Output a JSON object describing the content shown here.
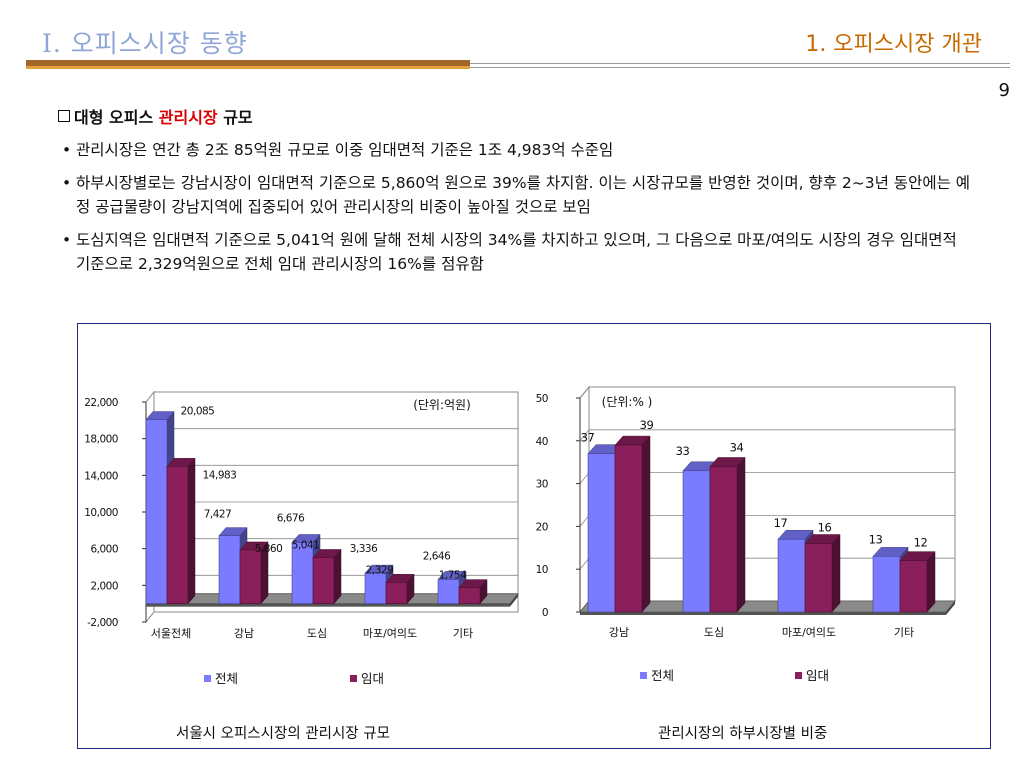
{
  "header": {
    "section_title": "Ⅰ. 오피스시장 동향",
    "page_heading": "1. 오피스시장 개관",
    "page_number": "9"
  },
  "subheading": {
    "prefix": "대형 오피스 ",
    "highlight": "관리시장",
    "suffix": " 규모"
  },
  "bullets": [
    "관리시장은 연간 총 2조 85억원 규모로 이중 임대면적 기준은 1조 4,983억 수준임",
    "하부시장별로는 강남시장이 임대면적 기준으로 5,860억 원으로 39%를 차지함. 이는 시장규모를 반영한 것이며, 향후 2~3년 동안에는 예정 공급물량이 강남지역에 집중되어 있어 관리시장의 비중이 높아질 것으로 보임",
    "도심지역은 임대면적 기준으로 5,041억 원에 달해 전체 시장의 34%를 차지하고 있으며, 그 다음으로 마포/여의도 시장의 경우 임대면적 기준으로 2,329억원으로 전체 임대 관리시장의 16%를 점유함"
  ],
  "colors": {
    "total": "#7b7bff",
    "lease": "#8a1f5c",
    "floor": "#8a8a8a"
  },
  "chart_data": [
    {
      "type": "bar",
      "unit_label": "(단위:억원)",
      "categories": [
        "서울전체",
        "강남",
        "도심",
        "마포/여의도",
        "기타"
      ],
      "series": [
        {
          "name": "전체",
          "values": [
            20085,
            7427,
            6676,
            3336,
            2646
          ],
          "labels": [
            "20,085",
            "7,427",
            "6,676",
            "3,336",
            "2,646"
          ]
        },
        {
          "name": "임대",
          "values": [
            14983,
            5860,
            5041,
            2329,
            1754
          ],
          "labels": [
            "14,983",
            "5,860",
            "5,041",
            "2,329",
            "1,754"
          ]
        }
      ],
      "ylim": [
        -2000,
        22000
      ],
      "yticks": [
        "22,000",
        "18,000",
        "14,000",
        "10,000",
        "6,000",
        "2,000",
        "-2,000"
      ],
      "ytick_values": [
        22000,
        18000,
        14000,
        10000,
        6000,
        2000,
        -2000
      ],
      "legend_placement": "bottom",
      "caption": "서울시 오피스시장의 관리시장 규모"
    },
    {
      "type": "bar",
      "unit_label": "(단위:% )",
      "categories": [
        "강남",
        "도심",
        "마포/여의도",
        "기타"
      ],
      "series": [
        {
          "name": "전체",
          "values": [
            37,
            33,
            17,
            13
          ],
          "labels": [
            "37",
            "33",
            "17",
            "13"
          ]
        },
        {
          "name": "임대",
          "values": [
            39,
            34,
            16,
            12
          ],
          "labels": [
            "39",
            "34",
            "16",
            "12"
          ]
        }
      ],
      "ylim": [
        0,
        50
      ],
      "yticks": [
        "50",
        "40",
        "30",
        "20",
        "10",
        "0"
      ],
      "ytick_values": [
        50,
        40,
        30,
        20,
        10,
        0
      ],
      "legend_placement": "bottom",
      "caption": "관리시장의 하부시장별 비중"
    }
  ]
}
